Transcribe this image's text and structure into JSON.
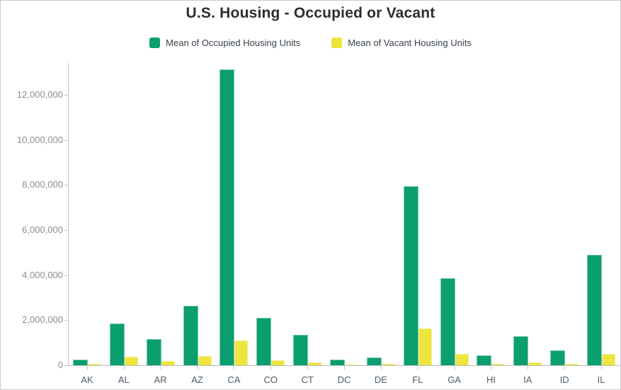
{
  "title": "U.S. Housing - Occupied or Vacant",
  "legend": {
    "items": [
      {
        "label": "Mean of Occupied Housing Units",
        "color": "#0b9e6f"
      },
      {
        "label": "Mean of Vacant Housing Units",
        "color": "#ede43e"
      }
    ]
  },
  "colors": {
    "occupied": "#0b9e6f",
    "vacant": "#ede43e",
    "axis_line": "#c6c6c6",
    "ytick_text": "#8e8e8e",
    "xtick_text": "#4e5c68",
    "title_text": "#2d2d2d"
  },
  "chart_data": {
    "type": "bar",
    "title": "U.S. Housing - Occupied or Vacant",
    "categories": [
      "AK",
      "AL",
      "AR",
      "AZ",
      "CA",
      "CO",
      "CT",
      "DC",
      "DE",
      "FL",
      "GA",
      "HI",
      "IA",
      "ID",
      "IL"
    ],
    "series": [
      {
        "name": "Mean of Occupied Housing Units",
        "color": "#0b9e6f",
        "values": [
          250000,
          1860000,
          1150000,
          2640000,
          13130000,
          2100000,
          1360000,
          260000,
          350000,
          7950000,
          3860000,
          440000,
          1280000,
          650000,
          4900000
        ]
      },
      {
        "name": "Mean of Vacant Housing Units",
        "color": "#ede43e",
        "values": [
          70000,
          375000,
          200000,
          410000,
          1110000,
          220000,
          125000,
          30000,
          70000,
          1620000,
          500000,
          75000,
          125000,
          75000,
          490000
        ]
      }
    ],
    "xlabel": "",
    "ylabel": "",
    "ylim": [
      0,
      13420000
    ],
    "yticks": [
      0,
      2000000,
      4000000,
      6000000,
      8000000,
      10000000,
      12000000
    ],
    "ytick_labels": [
      "0",
      "2,000,000",
      "4,000,000",
      "6,000,000",
      "8,000,000",
      "10,000,000",
      "12,000,000"
    ],
    "legend_position": "top",
    "grid": false
  }
}
